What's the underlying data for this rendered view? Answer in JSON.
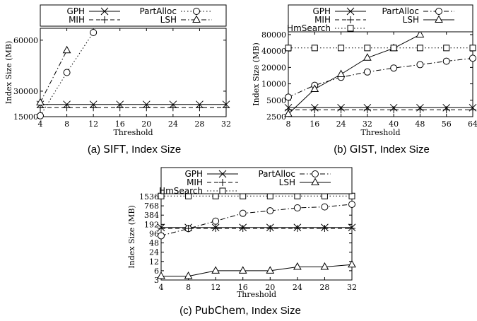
{
  "chart_data": [
    {
      "type": "line",
      "caption_prefix": "(a)",
      "caption_dataset": "SIFT",
      "caption_suffix": ", Index Size",
      "xlabel": "Threshold",
      "ylabel": "Index Size (MB)",
      "y_scale": "linear",
      "xlim": [
        4,
        32
      ],
      "ylim": [
        15000,
        67000
      ],
      "x_ticks": [
        4,
        8,
        12,
        16,
        20,
        24,
        28,
        32
      ],
      "y_ticks": [
        15000,
        30000,
        60000
      ],
      "y_tick_labels": [
        "15000",
        "30000",
        "60000"
      ],
      "x": [
        4,
        8,
        12,
        16,
        20,
        24,
        28,
        32
      ],
      "legend_columns": 2,
      "series": [
        {
          "name": "GPH",
          "marker": "x",
          "dash": "solid",
          "values": [
            22200,
            22200,
            22200,
            22200,
            22200,
            22200,
            22200,
            22200
          ]
        },
        {
          "name": "PartAlloc",
          "marker": "circle",
          "dash": "dot",
          "values": [
            15500,
            41000,
            64500,
            null,
            null,
            null,
            null,
            null
          ]
        },
        {
          "name": "MIH",
          "marker": "plus",
          "dash": "dash",
          "values": [
            20300,
            20300,
            20300,
            20300,
            20300,
            20300,
            20300,
            20300
          ]
        },
        {
          "name": "LSH",
          "marker": "triangle",
          "dash": "dashdot",
          "values": [
            23300,
            54000,
            null,
            null,
            null,
            null,
            null,
            null
          ]
        }
      ]
    },
    {
      "type": "line",
      "caption_prefix": "(b)",
      "caption_dataset": "GIST",
      "caption_suffix": ", Index Size",
      "xlabel": "Threshold",
      "ylabel": "Index Size (MB)",
      "y_scale": "log",
      "xlim": [
        8,
        64
      ],
      "ylim": [
        2500,
        90000
      ],
      "x_ticks": [
        8,
        16,
        24,
        32,
        40,
        48,
        56,
        64
      ],
      "y_ticks": [
        2500,
        5000,
        10000,
        20000,
        40000,
        80000
      ],
      "y_tick_labels": [
        "2500",
        "5000",
        "10000",
        "20000",
        "40000",
        "80000"
      ],
      "x": [
        8,
        16,
        24,
        32,
        40,
        48,
        56,
        64
      ],
      "legend_columns": 2,
      "series": [
        {
          "name": "GPH",
          "marker": "x",
          "dash": "solid",
          "values": [
            3650,
            3650,
            3650,
            3650,
            3650,
            3650,
            3650,
            3650
          ]
        },
        {
          "name": "PartAlloc",
          "marker": "circle",
          "dash": "dashdot",
          "values": [
            5700,
            9400,
            13200,
            16500,
            19500,
            22500,
            26000,
            29500
          ]
        },
        {
          "name": "MIH",
          "marker": "plus",
          "dash": "dash",
          "values": [
            3350,
            3350,
            3350,
            3350,
            3350,
            3350,
            3350,
            3350
          ]
        },
        {
          "name": "LSH",
          "marker": "triangle",
          "dash": "solid",
          "values": [
            2800,
            8000,
            15000,
            30000,
            45000,
            80000,
            null,
            null
          ]
        },
        {
          "name": "HmSearch",
          "marker": "square",
          "dash": "dot",
          "values": [
            45500,
            45500,
            45500,
            45500,
            45500,
            45500,
            45500,
            45500
          ]
        }
      ]
    },
    {
      "type": "line",
      "caption_prefix": "(c)",
      "caption_dataset": "PubChem",
      "caption_suffix": ", Index Size",
      "xlabel": "Threshold",
      "ylabel": "Index Size (MB)",
      "y_scale": "log",
      "xlim": [
        4,
        32
      ],
      "ylim": [
        3,
        1900
      ],
      "x_ticks": [
        4,
        8,
        12,
        16,
        20,
        24,
        28,
        32
      ],
      "y_ticks": [
        3,
        6,
        12,
        24,
        48,
        96,
        192,
        384,
        768,
        1536
      ],
      "y_tick_labels": [
        "3",
        "6",
        "12",
        "24",
        "48",
        "96",
        "192",
        "384",
        "768",
        "1536"
      ],
      "x": [
        4,
        8,
        12,
        16,
        20,
        24,
        28,
        32
      ],
      "legend_columns": 2,
      "series": [
        {
          "name": "GPH",
          "marker": "x",
          "dash": "solid",
          "values": [
            152,
            152,
            152,
            152,
            152,
            152,
            152,
            152
          ]
        },
        {
          "name": "PartAlloc",
          "marker": "circle",
          "dash": "dashdot",
          "values": [
            82,
            140,
            245,
            440,
            530,
            660,
            710,
            860
          ]
        },
        {
          "name": "MIH",
          "marker": "plus",
          "dash": "dash",
          "values": [
            142,
            142,
            142,
            142,
            142,
            142,
            142,
            142
          ]
        },
        {
          "name": "LSH",
          "marker": "triangle",
          "dash": "solid",
          "values": [
            4,
            4,
            6,
            6,
            6,
            8,
            8,
            9.5
          ]
        },
        {
          "name": "HmSearch",
          "marker": "square",
          "dash": "dot",
          "values": [
            1600,
            1600,
            1600,
            1600,
            1600,
            1600,
            1600,
            1600
          ]
        }
      ]
    }
  ]
}
